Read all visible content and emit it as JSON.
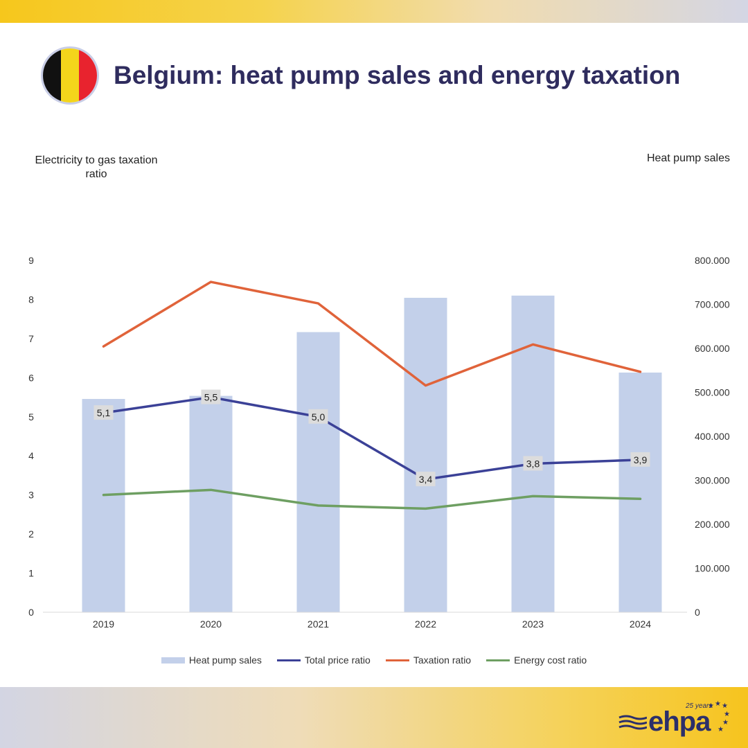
{
  "header": {
    "title": "Belgium: heat pump sales and energy taxation",
    "flag_colors": [
      "#111111",
      "#f4d51b",
      "#e8232e"
    ]
  },
  "axes": {
    "left_title": "Electricity to gas taxation ratio",
    "right_title": "Heat pump sales"
  },
  "chart_data": {
    "type": "bar+line",
    "categories": [
      "2019",
      "2020",
      "2021",
      "2022",
      "2023",
      "2024"
    ],
    "y_left": {
      "range": [
        0,
        9
      ],
      "ticks": [
        "0",
        "1",
        "2",
        "3",
        "4",
        "5",
        "6",
        "7",
        "8",
        "9"
      ]
    },
    "y_right": {
      "range": [
        0,
        800000
      ],
      "ticks": [
        "0",
        "100.000",
        "200.000",
        "300.000",
        "400.000",
        "500.000",
        "600.000",
        "700.000",
        "800.000"
      ]
    },
    "series": [
      {
        "name": "Heat pump sales",
        "kind": "bar",
        "axis": "right",
        "color": "#c3d0ea",
        "values": [
          485000,
          492000,
          637000,
          715000,
          720000,
          545000
        ]
      },
      {
        "name": "Total price ratio",
        "kind": "line",
        "axis": "left",
        "color": "#3b4197",
        "values": [
          5.1,
          5.5,
          5.0,
          3.4,
          3.8,
          3.9
        ],
        "labels": [
          "5,1",
          "5,5",
          "5,0",
          "3,4",
          "3,8",
          "3,9"
        ]
      },
      {
        "name": "Taxation ratio",
        "kind": "line",
        "axis": "left",
        "color": "#e0633a",
        "values": [
          6.8,
          8.45,
          7.9,
          5.8,
          6.85,
          6.15
        ]
      },
      {
        "name": "Energy cost ratio",
        "kind": "line",
        "axis": "left",
        "color": "#6e9f62",
        "values": [
          3.0,
          3.13,
          2.73,
          2.65,
          2.97,
          2.9
        ]
      }
    ]
  },
  "legend": {
    "items": [
      "Heat pump sales",
      "Total price ratio",
      "Taxation ratio",
      "Energy cost ratio"
    ]
  },
  "logo": {
    "text": "ehpa",
    "tagline": "25 years",
    "brand_color": "#2c2f6a"
  }
}
